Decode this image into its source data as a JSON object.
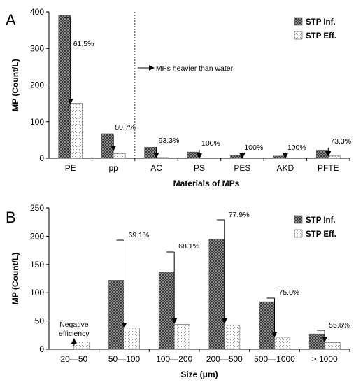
{
  "chart_data": [
    {
      "panel_label": "A",
      "type": "bar",
      "categories": [
        "PE",
        "pp",
        "AC",
        "PS",
        "PES",
        "AKD",
        "PFTE"
      ],
      "series": [
        {
          "name": "STP Inf.",
          "values": [
            390,
            67,
            30,
            17,
            7,
            6,
            22
          ]
        },
        {
          "name": "STP Eff.",
          "values": [
            150,
            13,
            2,
            0,
            0,
            0,
            6
          ]
        }
      ],
      "annotations": [
        "61.5%",
        "80.7%",
        "93.3%",
        "100%",
        "100%",
        "100%",
        "73.3%"
      ],
      "xlabel": "Materials of MPs",
      "ylabel": "MP (Count/L)",
      "ylim": [
        0,
        400
      ],
      "yticks": [
        0,
        100,
        200,
        300,
        400
      ],
      "divider_note": "MPs heavier than water",
      "legend_position": "top-right",
      "grid": false
    },
    {
      "panel_label": "B",
      "type": "bar",
      "categories": [
        "20—50",
        "50—100",
        "100—200",
        "200—500",
        "500—1000",
        "> 1000"
      ],
      "series": [
        {
          "name": "STP Inf.",
          "values": [
            0,
            122,
            137,
            195,
            84,
            27
          ]
        },
        {
          "name": "STP Eff.",
          "values": [
            13,
            38,
            44,
            43,
            21,
            12
          ]
        }
      ],
      "annotations": [
        "Negative efficiency",
        "69.1%",
        "68.1%",
        "77.9%",
        "75.0%",
        "55.6%"
      ],
      "xlabel": "Size (μm)",
      "ylabel": "MP (Count/L)",
      "ylim": [
        0,
        250
      ],
      "yticks": [
        0,
        50,
        100,
        150,
        200,
        250
      ],
      "legend_position": "top-right",
      "grid": false
    }
  ]
}
